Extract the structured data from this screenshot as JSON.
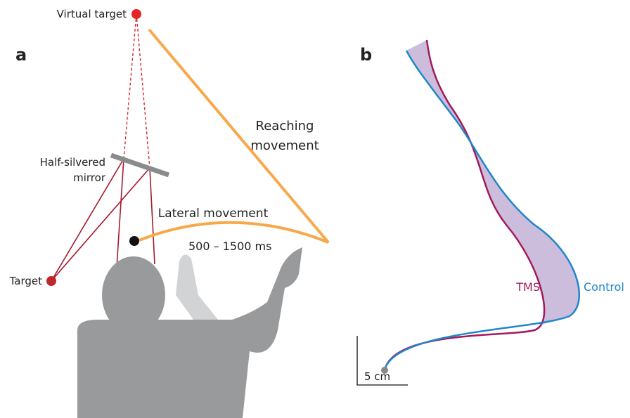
{
  "panels": {
    "a": "a",
    "b": "b"
  },
  "virtual_target": "Virtual target",
  "reaching_movement": [
    "Reaching",
    "movement"
  ],
  "mirror": [
    "Half-silvered",
    "mirror"
  ],
  "lateral_movement": "Lateral movement",
  "delay": "500 – 1500 ms",
  "target": "Target",
  "legend": {
    "tms": "TMS",
    "control": "Control"
  },
  "scale_bar": "5 cm"
}
